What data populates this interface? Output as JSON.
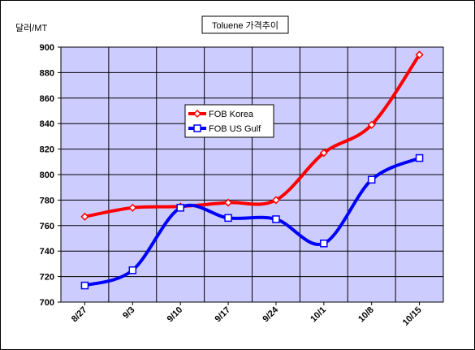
{
  "chart_data": {
    "type": "line",
    "title": "Toluene 가격추이",
    "ylabel": "달러/MT",
    "xlabel": "",
    "categories": [
      "8/27",
      "9/3",
      "9/10",
      "9/17",
      "9/24",
      "10/1",
      "10/8",
      "10/15"
    ],
    "ylim": [
      700,
      900
    ],
    "yticks": [
      700,
      720,
      740,
      760,
      780,
      800,
      820,
      840,
      860,
      880,
      900
    ],
    "grid": true,
    "legend_position": "center",
    "series": [
      {
        "name": "FOB Korea",
        "color": "#ff0000",
        "marker": "diamond",
        "values": [
          767,
          774,
          775,
          778,
          780,
          817,
          839,
          894
        ]
      },
      {
        "name": "FOB US Gulf",
        "color": "#0000ff",
        "marker": "square",
        "values": [
          713,
          725,
          774,
          766,
          765,
          746,
          796,
          813
        ]
      }
    ],
    "plot_background": "#ccccff"
  }
}
